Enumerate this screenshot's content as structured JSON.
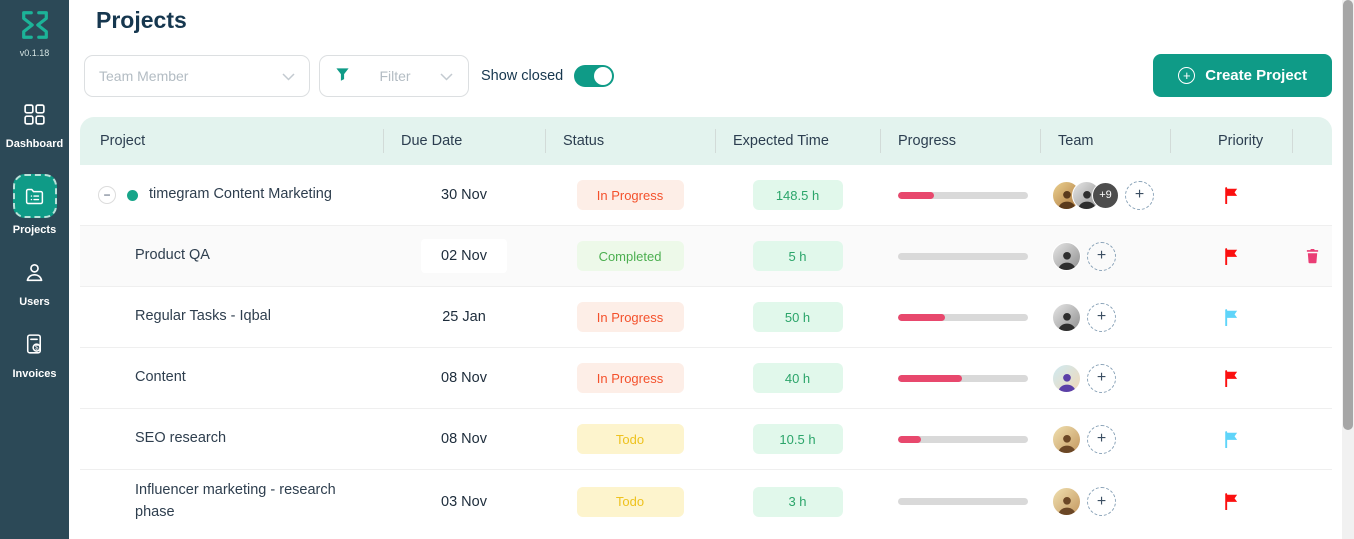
{
  "app": {
    "version": "v0.1.18"
  },
  "sidebar": {
    "items": [
      {
        "id": "dashboard",
        "label": "Dashboard",
        "active": false
      },
      {
        "id": "projects",
        "label": "Projects",
        "active": true
      },
      {
        "id": "users",
        "label": "Users",
        "active": false
      },
      {
        "id": "invoices",
        "label": "Invoices",
        "active": false
      }
    ]
  },
  "header": {
    "title": "Projects"
  },
  "filters": {
    "team_member_placeholder": "Team Member",
    "filter_label": "Filter",
    "show_closed_label": "Show closed",
    "show_closed_state": "on",
    "create_project_label": "Create Project"
  },
  "table": {
    "columns": [
      "Project",
      "Due Date",
      "Status",
      "Expected Time",
      "Progress",
      "Team",
      "Priority"
    ],
    "rows": [
      {
        "project": "timegram Content Marketing",
        "is_parent": true,
        "expanded": true,
        "due": "30 Nov",
        "due_boxed": false,
        "status": "In Progress",
        "status_type": "in-progress",
        "expected_time": "148.5 h",
        "progress_pct": 28,
        "team": {
          "avatars": [
            "man-warm",
            "man-grayscale"
          ],
          "overflow": "+9"
        },
        "priority": "red",
        "deletable": false,
        "shaded": false
      },
      {
        "project": "Product QA",
        "is_parent": false,
        "due": "02 Nov",
        "due_boxed": true,
        "status": "Completed",
        "status_type": "completed",
        "expected_time": "5 h",
        "progress_pct": 0,
        "team": {
          "avatars": [
            "man-grayscale"
          ]
        },
        "priority": "red",
        "deletable": true,
        "shaded": true
      },
      {
        "project": "Regular Tasks - Iqbal",
        "is_parent": false,
        "due": "25 Jan",
        "due_boxed": false,
        "status": "In Progress",
        "status_type": "in-progress",
        "expected_time": "50 h",
        "progress_pct": 36,
        "team": {
          "avatars": [
            "man-grayscale"
          ]
        },
        "priority": "cyan",
        "deletable": false,
        "shaded": false
      },
      {
        "project": "Content",
        "is_parent": false,
        "due": "08 Nov",
        "due_boxed": false,
        "status": "In Progress",
        "status_type": "in-progress",
        "expected_time": "40 h",
        "progress_pct": 49,
        "team": {
          "avatars": [
            "person-colorful"
          ]
        },
        "priority": "red",
        "deletable": false,
        "shaded": false
      },
      {
        "project": "SEO research",
        "is_parent": false,
        "due": "08 Nov",
        "due_boxed": false,
        "status": "Todo",
        "status_type": "todo",
        "expected_time": "10.5 h",
        "progress_pct": 18,
        "team": {
          "avatars": [
            "man-tan"
          ]
        },
        "priority": "cyan",
        "deletable": false,
        "shaded": false
      },
      {
        "project": "Influencer marketing - research phase",
        "is_parent": false,
        "due": "03 Nov",
        "due_boxed": false,
        "status": "Todo",
        "status_type": "todo",
        "expected_time": "3 h",
        "progress_pct": 0,
        "team": {
          "avatars": [
            "man-tan"
          ]
        },
        "priority": "red",
        "deletable": false,
        "shaded": false
      }
    ]
  },
  "colors": {
    "accent_teal": "#0f9b87",
    "sidebar_bg": "#2c4957",
    "table_header_bg": "#e3f3ee",
    "progress_fill": "#e8486d",
    "flag_red": "#fb1010",
    "flag_cyan": "#5fd4f9",
    "trash_icon": "#ea3d75",
    "status_in_progress_text": "#f4512c",
    "status_completed_text": "#4caf50",
    "status_todo_text": "#eec21f",
    "time_badge_text": "#2ba56a"
  }
}
